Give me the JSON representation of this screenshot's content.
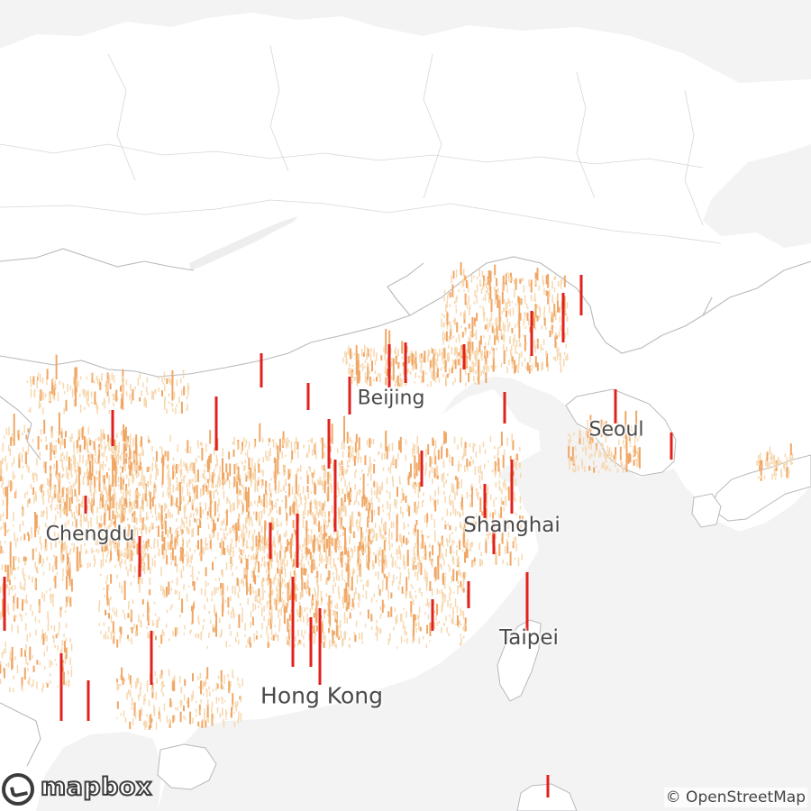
{
  "map": {
    "style": "light",
    "colors": {
      "land": "#ffffff",
      "water": "#f3f3f4",
      "border": "#b9b9bd",
      "low": "#f7d8b0",
      "mid": "#f0a766",
      "high": "#e0211c"
    }
  },
  "cities": {
    "beijing": "Beijing",
    "seoul": "Seoul",
    "chengdu": "Chengdu",
    "shanghai": "Shanghai",
    "taipei": "Taipei",
    "hong_kong": "Hong Kong"
  },
  "branding": {
    "logo_text": "mapbox",
    "logo_icon": "mapbox-logo-icon"
  },
  "attribution": {
    "text": "© OpenStreetMap"
  }
}
